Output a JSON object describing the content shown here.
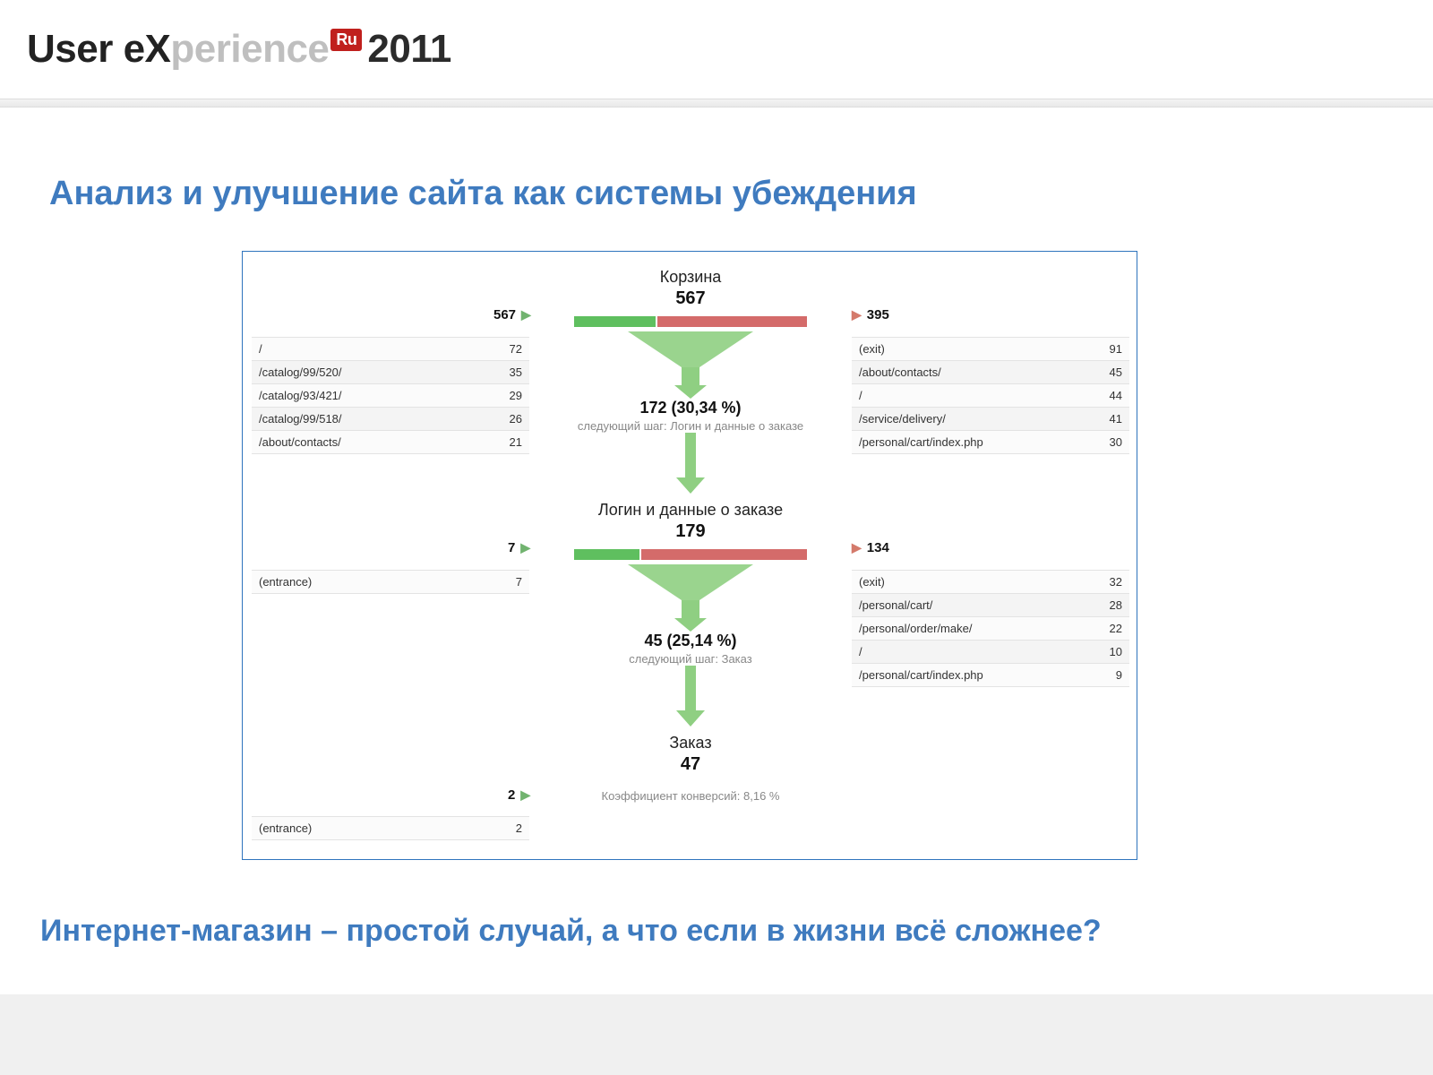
{
  "header": {
    "logo_part1": "User ",
    "logo_bold": "eX",
    "logo_fade": "perience",
    "logo_badge": "Ru",
    "logo_year": "2011"
  },
  "title": "Анализ и улучшение сайта как системы убеждения",
  "subtitle": "Интернет-магазин – простой случай, а что если в жизни всё сложнее?",
  "colors": {
    "accent": "#3f7bbf",
    "green": "#5fbf5f",
    "red": "#d46b6a",
    "tri_in": "#71b36f",
    "tri_out": "#d47a6b",
    "frame": "#2f74bd"
  },
  "funnel": {
    "steps": [
      {
        "title": "Корзина",
        "count": "567",
        "in_count": "567",
        "out_count": "395",
        "bar_green_pct": 35,
        "bar_red_pct": 65,
        "drop_stat": "172 (30,34 %)",
        "drop_sub": "следующий шаг: Логин и данные о заказе",
        "left_rows": [
          {
            "k": "/",
            "v": "72"
          },
          {
            "k": "/catalog/99/520/",
            "v": "35"
          },
          {
            "k": "/catalog/93/421/",
            "v": "29"
          },
          {
            "k": "/catalog/99/518/",
            "v": "26"
          },
          {
            "k": "/about/contacts/",
            "v": "21"
          }
        ],
        "right_rows": [
          {
            "k": "(exit)",
            "v": "91"
          },
          {
            "k": "/about/contacts/",
            "v": "45"
          },
          {
            "k": "/",
            "v": "44"
          },
          {
            "k": "/service/delivery/",
            "v": "41"
          },
          {
            "k": "/personal/cart/index.php",
            "v": "30"
          }
        ]
      },
      {
        "title": "Логин и данные о заказе",
        "count": "179",
        "in_count": "7",
        "out_count": "134",
        "bar_green_pct": 28,
        "bar_red_pct": 72,
        "drop_stat": "45 (25,14 %)",
        "drop_sub": "следующий шаг: Заказ",
        "left_rows": [
          {
            "k": "(entrance)",
            "v": "7"
          }
        ],
        "right_rows": [
          {
            "k": "(exit)",
            "v": "32"
          },
          {
            "k": "/personal/cart/",
            "v": "28"
          },
          {
            "k": "/personal/order/make/",
            "v": "22"
          },
          {
            "k": "/",
            "v": "10"
          },
          {
            "k": "/personal/cart/index.php",
            "v": "9"
          }
        ]
      },
      {
        "title": "Заказ",
        "count": "47",
        "in_count": "2",
        "out_count": "",
        "bar_green_pct": 0,
        "bar_red_pct": 0,
        "drop_stat": "",
        "drop_sub": "Коэффициент конверсий: 8,16 %",
        "left_rows": [
          {
            "k": "(entrance)",
            "v": "2"
          }
        ],
        "right_rows": []
      }
    ]
  }
}
